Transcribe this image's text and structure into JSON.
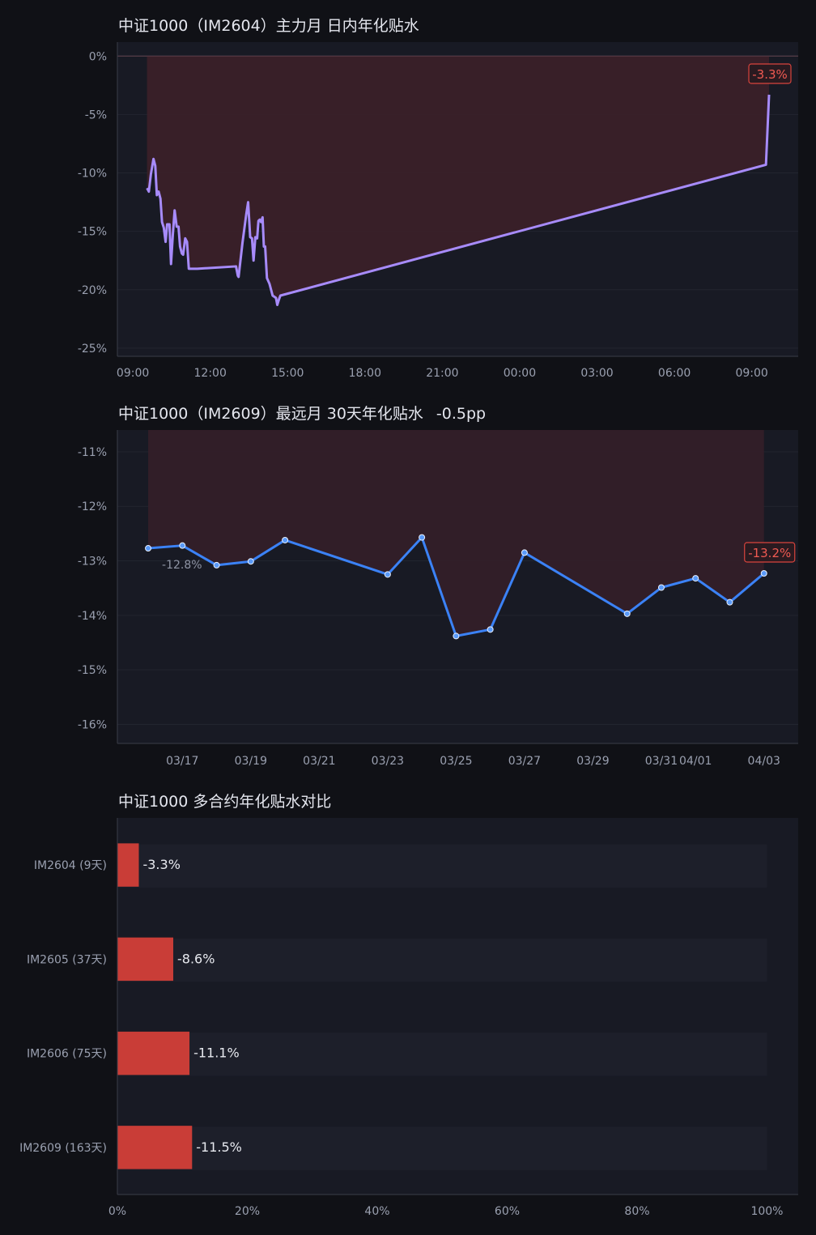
{
  "chart_data": [
    {
      "type": "line",
      "title": "中证1000（IM2604）主力月 日内年化贴水",
      "xlabel": "",
      "ylabel": "",
      "x_tick_labels": [
        "09:00",
        "12:00",
        "15:00",
        "18:00",
        "21:00",
        "00:00",
        "03:00",
        "06:00",
        "09:00"
      ],
      "x_ticks_hours": [
        9,
        12,
        15,
        18,
        21,
        24,
        27,
        30,
        33
      ],
      "x_range_hours": [
        8.4,
        34.8
      ],
      "y_tick_labels": [
        "0%",
        "-5%",
        "-10%",
        "-15%",
        "-20%",
        "-25%"
      ],
      "y_ticks": [
        0,
        -5,
        -10,
        -15,
        -20,
        -25
      ],
      "ylim": [
        -25.7,
        1.2
      ],
      "grid": true,
      "series": [
        {
          "color": "#a78bfa",
          "x_hours": [
            9.55,
            9.62,
            9.7,
            9.8,
            9.87,
            9.93,
            10.0,
            10.07,
            10.13,
            10.2,
            10.27,
            10.33,
            10.42,
            10.48,
            10.55,
            10.62,
            10.7,
            10.77,
            10.83,
            10.9,
            10.95,
            11.03,
            11.1,
            11.17,
            11.25,
            11.32,
            11.38,
            11.45,
            11.5,
            13.0,
            13.07,
            13.1,
            13.25,
            13.4,
            13.47,
            13.55,
            13.62,
            13.68,
            13.75,
            13.82,
            13.87,
            13.92,
            13.97,
            14.03,
            14.08,
            14.13,
            14.2,
            14.3,
            14.42,
            14.55,
            14.6,
            14.67,
            14.72,
            33.55,
            33.67
          ],
          "values": [
            -11.3,
            -11.6,
            -10.1,
            -8.8,
            -9.4,
            -11.9,
            -11.6,
            -12.2,
            -14.2,
            -14.7,
            -15.9,
            -14.4,
            -14.4,
            -17.8,
            -15.3,
            -13.2,
            -14.6,
            -14.6,
            -16.3,
            -16.9,
            -17.0,
            -15.6,
            -15.9,
            -18.2,
            -18.2,
            -18.2,
            -18.2,
            -18.2,
            -18.2,
            -18.0,
            -18.8,
            -18.9,
            -16.0,
            -13.5,
            -12.5,
            -15.5,
            -15.6,
            -17.5,
            -15.5,
            -15.6,
            -14.1,
            -14.0,
            -14.2,
            -13.8,
            -16.3,
            -16.3,
            -19.0,
            -19.5,
            -20.5,
            -20.7,
            -21.3,
            -20.8,
            -20.5,
            -9.3,
            -3.3
          ]
        }
      ],
      "end_label": "-3.3%",
      "shaded_region": "from 0% baseline down to series",
      "shade_color": "#3a2029"
    },
    {
      "type": "line",
      "title": "中证1000（IM2609）最远月 30天年化贴水",
      "change_label": "-0.5pp",
      "xlabel": "",
      "ylabel": "",
      "x_tick_labels": [
        "03/17",
        "03/19",
        "03/21",
        "03/23",
        "03/25",
        "03/27",
        "03/29",
        "03/31",
        "04/01",
        "04/03"
      ],
      "x_ticks_day": [
        17,
        19,
        21,
        23,
        25,
        27,
        29,
        31,
        32,
        34
      ],
      "x_range_day": [
        15.1,
        35.0
      ],
      "y_tick_labels": [
        "-11%",
        "-12%",
        "-13%",
        "-14%",
        "-15%",
        "-16%"
      ],
      "y_ticks": [
        -11,
        -12,
        -13,
        -14,
        -15,
        -16
      ],
      "ylim": [
        -16.35,
        -10.6
      ],
      "grid": true,
      "series": [
        {
          "color": "#3b82f6",
          "x_day": [
            16,
            17,
            18,
            19,
            20,
            23,
            24,
            25,
            26,
            27,
            30,
            31,
            32,
            33,
            34
          ],
          "values": [
            -12.77,
            -12.72,
            -13.08,
            -13.01,
            -12.62,
            -13.25,
            -12.57,
            -14.38,
            -14.26,
            -12.85,
            -13.97,
            -13.49,
            -13.32,
            -13.76,
            -13.23
          ]
        }
      ],
      "start_label": "-12.8%",
      "end_label": "-13.2%",
      "shaded_region": "from chart top down to series",
      "shade_color": "#331f29"
    },
    {
      "type": "bar",
      "orientation": "horizontal",
      "title": "中证1000 多合约年化贴水对比",
      "xlabel": "",
      "ylabel": "",
      "categories": [
        "IM2604 (9天)",
        "IM2605 (37天)",
        "IM2606 (75天)",
        "IM2609 (163天)"
      ],
      "values": [
        -3.3,
        -8.6,
        -11.1,
        -11.5
      ],
      "value_labels": [
        "-3.3%",
        "-8.6%",
        "-11.1%",
        "-11.5%"
      ],
      "x_tick_labels": [
        "0%",
        "20%",
        "40%",
        "60%",
        "80%",
        "100%"
      ],
      "x_ticks": [
        0,
        20,
        40,
        60,
        80,
        100
      ],
      "xlim": [
        0,
        104.8
      ],
      "bar_color": "#c93d37",
      "grid": true
    }
  ]
}
